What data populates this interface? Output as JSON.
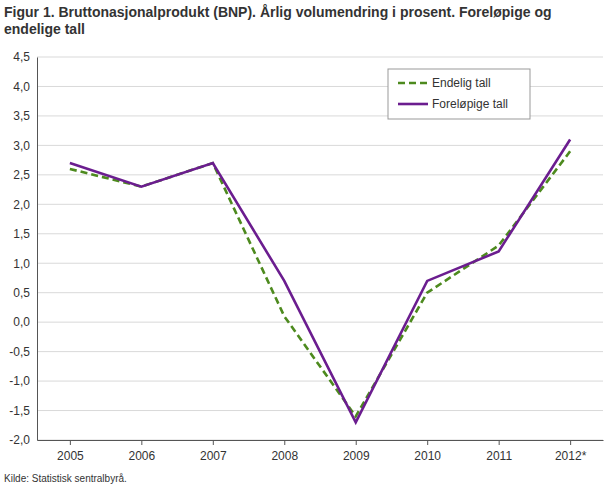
{
  "chart_data": {
    "type": "line",
    "title": "Figur 1. Bruttonasjonalprodukt (BNP). Årlig volumendring i prosent. Foreløpige og endelige tall",
    "source": "Kilde: Statistisk sentralbyrå.",
    "categories": [
      "2005",
      "2006",
      "2007",
      "2008",
      "2009",
      "2010",
      "2011",
      "2012*"
    ],
    "series": [
      {
        "name": "Endelig tall",
        "color": "#4d8a1e",
        "line_style": "dashed",
        "values": [
          2.6,
          2.3,
          2.7,
          0.1,
          -1.6,
          0.5,
          1.3,
          2.9
        ]
      },
      {
        "name": "Foreløpige tall",
        "color": "#6b1d8f",
        "line_style": "solid",
        "values": [
          2.7,
          2.3,
          2.7,
          0.7,
          -1.7,
          0.7,
          1.2,
          3.1
        ]
      }
    ],
    "ylim": [
      -2.0,
      4.5
    ],
    "yticks": [
      {
        "value": -2.0,
        "label": "-2,0"
      },
      {
        "value": -1.5,
        "label": "-1,5"
      },
      {
        "value": -1.0,
        "label": "-1,0"
      },
      {
        "value": -0.5,
        "label": "-0,5"
      },
      {
        "value": 0.0,
        "label": "0,0"
      },
      {
        "value": 0.5,
        "label": "0,5"
      },
      {
        "value": 1.0,
        "label": "1,0"
      },
      {
        "value": 1.5,
        "label": "1,5"
      },
      {
        "value": 2.0,
        "label": "2,0"
      },
      {
        "value": 2.5,
        "label": "2,5"
      },
      {
        "value": 3.0,
        "label": "3,0"
      },
      {
        "value": 3.5,
        "label": "3,5"
      },
      {
        "value": 4.0,
        "label": "4,0"
      },
      {
        "value": 4.5,
        "label": "4,5"
      }
    ],
    "grid": true,
    "legend": "top-right"
  }
}
